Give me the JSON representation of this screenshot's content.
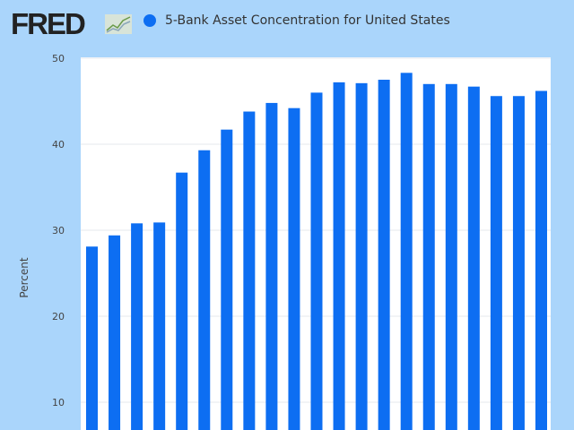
{
  "header": {
    "logo_text": "FRED",
    "legend_icon": "circle",
    "series_label": "5-Bank Asset Concentration for United States"
  },
  "colors": {
    "bar": "#0d6ef2",
    "background": "#aad5fb",
    "plot": "#ffffff"
  },
  "chart_data": {
    "type": "bar",
    "title": "",
    "ylabel": "Percent",
    "ylim": [
      0,
      50
    ],
    "yticks": [
      "10",
      "20",
      "30",
      "40",
      "50"
    ],
    "grid": true,
    "legend_placement": "top",
    "series": [
      {
        "name": "5-Bank Asset Concentration for United States",
        "values": [
          28.1,
          29.4,
          30.8,
          30.9,
          36.7,
          39.3,
          41.7,
          43.8,
          44.8,
          44.2,
          46.0,
          47.2,
          47.1,
          47.5,
          48.3,
          47.0,
          47.0,
          46.7,
          45.6,
          45.6,
          46.2
        ]
      }
    ]
  }
}
